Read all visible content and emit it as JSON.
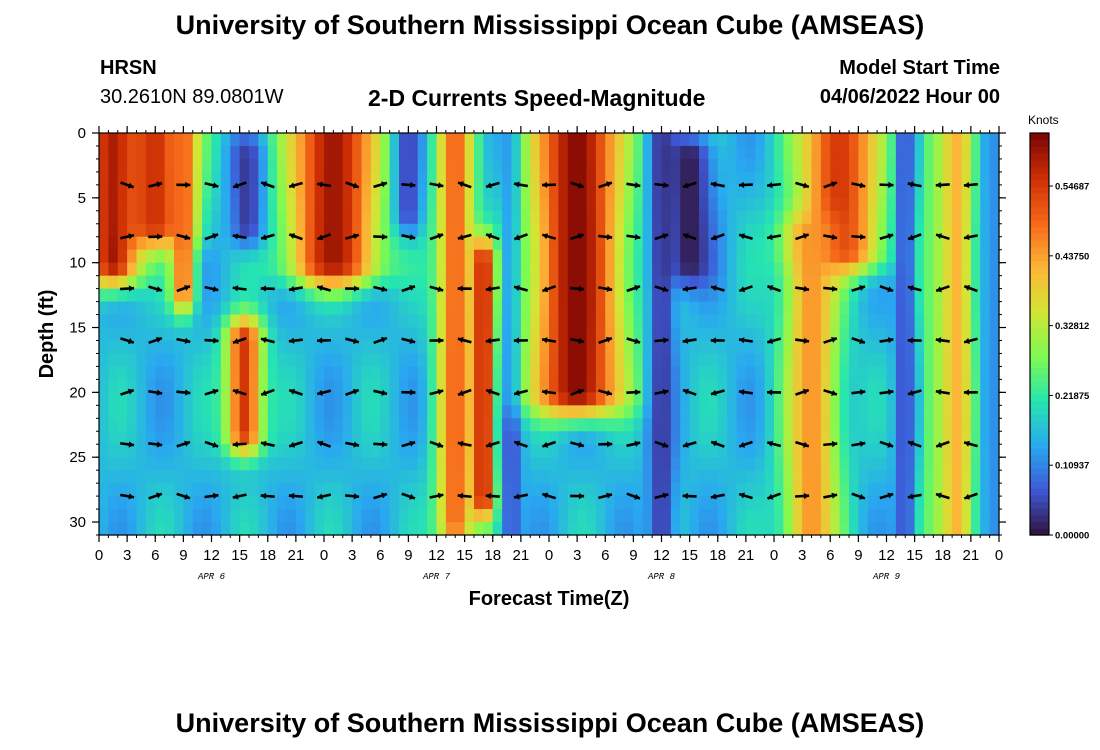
{
  "page": {
    "title": "University of Southern Mississippi Ocean Cube (AMSEAS)",
    "station": "HRSN",
    "coords": "30.2610N  89.0801W",
    "subtitle": "2-D Currents Speed-Magnitude",
    "model_label": "Model Start Time",
    "model_time": "04/06/2022 Hour 00",
    "footer_title": "University of Southern Mississippi Ocean Cube (AMSEAS)"
  },
  "colors": {
    "scale": [
      "#30123b",
      "#3e58d6",
      "#29a8f0",
      "#26e5b0",
      "#7efa51",
      "#d2e535",
      "#fcb536",
      "#f56819",
      "#cd2f04",
      "#7a0403"
    ],
    "arrow": "#000000"
  },
  "chart_data": {
    "type": "heatmap",
    "xlabel": "Forecast Time(Z)",
    "ylabel": "Depth (ft)",
    "x_range": [
      0,
      96
    ],
    "y_range": [
      0,
      31
    ],
    "x_ticks": [
      0,
      3,
      6,
      9,
      12,
      15,
      18,
      21,
      24,
      27,
      30,
      33,
      36,
      39,
      42,
      45,
      48,
      51,
      54,
      57,
      60,
      63,
      66,
      69,
      72,
      75,
      78,
      81,
      84,
      87,
      90,
      93,
      96
    ],
    "x_tick_labels": [
      "0",
      "3",
      "6",
      "9",
      "12",
      "15",
      "18",
      "21",
      "0",
      "3",
      "6",
      "9",
      "12",
      "15",
      "18",
      "21",
      "0",
      "3",
      "6",
      "9",
      "12",
      "15",
      "18",
      "21",
      "0",
      "3",
      "6",
      "9",
      "12",
      "15",
      "18",
      "21",
      "0"
    ],
    "y_ticks": [
      0,
      5,
      10,
      15,
      20,
      25,
      30
    ],
    "y_tick_labels": [
      "0",
      "5",
      "10",
      "15",
      "20",
      "25",
      "30"
    ],
    "date_labels": [
      {
        "hour": 12,
        "text": "APR 6"
      },
      {
        "hour": 36,
        "text": "APR 7"
      },
      {
        "hour": 60,
        "text": "APR 8"
      },
      {
        "hour": 84,
        "text": "APR 9"
      }
    ],
    "colorbar": {
      "label": "Knots",
      "range": [
        0,
        0.63
      ],
      "ticks": [
        0.0,
        0.10937,
        0.21875,
        0.32812,
        0.4375,
        0.54687
      ],
      "tick_labels": [
        "0.00000",
        "0.10937",
        "0.21875",
        "0.32812",
        "0.43750",
        "0.54687"
      ]
    },
    "vector_depths": [
      4,
      8,
      12,
      16,
      20,
      24,
      28
    ],
    "vector_hours": [
      0,
      3,
      6,
      9,
      12,
      15,
      18,
      21,
      24,
      27,
      30,
      33,
      36,
      39,
      42,
      45,
      48,
      51,
      54,
      57,
      60,
      63,
      66,
      69,
      72,
      75,
      78,
      81,
      84,
      87,
      90,
      93
    ],
    "vector_speed_features": [
      {
        "t": 1.5,
        "d0": 0,
        "d1": 10,
        "v": 0.6,
        "w": 3
      },
      {
        "t": 6,
        "d0": 0,
        "d1": 7,
        "v": 0.56,
        "w": 4
      },
      {
        "t": 9,
        "d0": 0,
        "d1": 12,
        "v": 0.5,
        "w": 1.3
      },
      {
        "t": 16,
        "d0": 2,
        "d1": 7,
        "v": 0.02,
        "w": 2
      },
      {
        "t": 15.5,
        "d0": 16,
        "d1": 23,
        "v": 0.55,
        "w": 2
      },
      {
        "t": 25,
        "d0": 0,
        "d1": 10,
        "v": 0.6,
        "w": 5
      },
      {
        "t": 33,
        "d0": 0,
        "d1": 6,
        "v": 0.05,
        "w": 1.5
      },
      {
        "t": 38,
        "d0": 0,
        "d1": 30,
        "v": 0.5,
        "w": 2
      },
      {
        "t": 41,
        "d0": 10,
        "d1": 28,
        "v": 0.6,
        "w": 1.2
      },
      {
        "t": 44,
        "d0": 0,
        "d1": 31,
        "v": 0.06,
        "w": 1
      },
      {
        "t": 51,
        "d0": 0,
        "d1": 20,
        "v": 0.62,
        "w": 5
      },
      {
        "t": 60,
        "d0": 0,
        "d1": 31,
        "v": 0.04,
        "w": 1.4
      },
      {
        "t": 63,
        "d0": 2,
        "d1": 10,
        "v": 0.01,
        "w": 2.5
      },
      {
        "t": 79,
        "d0": 0,
        "d1": 9,
        "v": 0.55,
        "w": 4.5
      },
      {
        "t": 76,
        "d0": 8,
        "d1": 31,
        "v": 0.45,
        "w": 3
      },
      {
        "t": 86,
        "d0": 0,
        "d1": 31,
        "v": 0.05,
        "w": 1
      },
      {
        "t": 89,
        "d0": 0,
        "d1": 31,
        "v": 0.25,
        "w": 1.5
      },
      {
        "t": 91.5,
        "d0": 0,
        "d1": 31,
        "v": 0.42,
        "w": 2
      },
      {
        "t": 95.5,
        "d0": 0,
        "d1": 31,
        "v": 0.12,
        "w": 1.5
      }
    ]
  }
}
